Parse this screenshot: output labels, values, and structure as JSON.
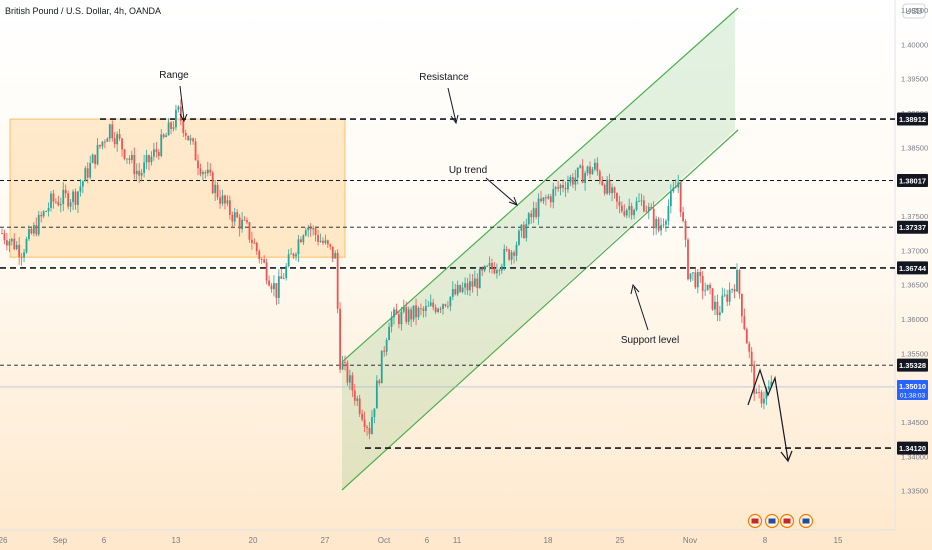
{
  "title": "British Pound / U.S. Dollar, 4h, OANDA",
  "currency": "USD",
  "colors": {
    "up": "#26a69a",
    "down": "#ef5350",
    "channel": "#4caf50",
    "range": "#ff9800",
    "text": "#131722",
    "axis": "#787b86"
  },
  "chart_data": {
    "type": "candlestick",
    "symbol": "GBPUSD",
    "timeframe": "4h",
    "ylim": [
      1.33,
      1.405
    ],
    "y_ticks": [
      "1.40500",
      "1.40000",
      "1.39500",
      "1.39000",
      "1.38500",
      "1.37500",
      "1.37000",
      "1.36500",
      "1.36000",
      "1.35500",
      "1.34500",
      "1.34000",
      "1.33500"
    ],
    "x_ticks": [
      "26",
      "Sep",
      "6",
      "13",
      "20",
      "27",
      "Oct",
      "6",
      "11",
      "18",
      "25",
      "Nov",
      "8",
      "15"
    ],
    "price_levels": [
      {
        "label": "1.38912",
        "value": 1.38912,
        "style": "thick"
      },
      {
        "label": "1.38017",
        "value": 1.38017,
        "style": "thin"
      },
      {
        "label": "1.37337",
        "value": 1.37337,
        "style": "thin"
      },
      {
        "label": "1.36744",
        "value": 1.36744,
        "style": "thick"
      },
      {
        "label": "1.35328",
        "value": 1.35328,
        "style": "thin"
      },
      {
        "label": "1.34120",
        "value": 1.3412,
        "style": "thick"
      }
    ],
    "last_price": {
      "label": "1.35010",
      "countdown": "01:38:03",
      "value": 1.3501
    },
    "annotations": [
      "Range",
      "Resistance",
      "Up trend",
      "Support level"
    ],
    "segments": [
      {
        "from": [
          0,
          1.3725
        ],
        "to": [
          8,
          1.37
        ]
      },
      {
        "from": [
          8,
          1.37
        ],
        "to": [
          20,
          1.377
        ]
      },
      {
        "from": [
          20,
          1.377
        ],
        "to": [
          30,
          1.378
        ]
      },
      {
        "from": [
          30,
          1.378
        ],
        "to": [
          44,
          1.388
        ]
      },
      {
        "from": [
          44,
          1.388
        ],
        "to": [
          56,
          1.381
        ]
      },
      {
        "from": [
          56,
          1.381
        ],
        "to": [
          66,
          1.386
        ]
      },
      {
        "from": [
          66,
          1.386
        ],
        "to": [
          72,
          1.39
        ]
      },
      {
        "from": [
          72,
          1.39
        ],
        "to": [
          80,
          1.383
        ]
      },
      {
        "from": [
          80,
          1.383
        ],
        "to": [
          92,
          1.376
        ]
      },
      {
        "from": [
          92,
          1.376
        ],
        "to": [
          100,
          1.373
        ]
      },
      {
        "from": [
          100,
          1.373
        ],
        "to": [
          112,
          1.364
        ]
      },
      {
        "from": [
          112,
          1.364
        ],
        "to": [
          124,
          1.374
        ]
      },
      {
        "from": [
          124,
          1.374
        ],
        "to": [
          136,
          1.369
        ]
      },
      {
        "from": [
          136,
          1.369
        ],
        "to": [
          138,
          1.354
        ]
      },
      {
        "from": [
          138,
          1.354
        ],
        "to": [
          150,
          1.344
        ]
      },
      {
        "from": [
          150,
          1.344
        ],
        "to": [
          158,
          1.36
        ]
      },
      {
        "from": [
          158,
          1.36
        ],
        "to": [
          172,
          1.361
        ]
      },
      {
        "from": [
          172,
          1.361
        ],
        "to": [
          192,
          1.365
        ]
      },
      {
        "from": [
          192,
          1.365
        ],
        "to": [
          208,
          1.37
        ]
      },
      {
        "from": [
          208,
          1.37
        ],
        "to": [
          218,
          1.376
        ]
      },
      {
        "from": [
          218,
          1.376
        ],
        "to": [
          230,
          1.38
        ]
      },
      {
        "from": [
          230,
          1.38
        ],
        "to": [
          242,
          1.382
        ]
      },
      {
        "from": [
          242,
          1.382
        ],
        "to": [
          252,
          1.376
        ]
      },
      {
        "from": [
          252,
          1.376
        ],
        "to": [
          262,
          1.377
        ]
      },
      {
        "from": [
          262,
          1.377
        ],
        "to": [
          268,
          1.373
        ]
      },
      {
        "from": [
          268,
          1.373
        ],
        "to": [
          276,
          1.38
        ]
      },
      {
        "from": [
          276,
          1.38
        ],
        "to": [
          280,
          1.367
        ]
      },
      {
        "from": [
          280,
          1.367
        ],
        "to": [
          288,
          1.364
        ]
      },
      {
        "from": [
          288,
          1.364
        ],
        "to": [
          292,
          1.361
        ]
      },
      {
        "from": [
          292,
          1.361
        ],
        "to": [
          300,
          1.366
        ]
      },
      {
        "from": [
          300,
          1.366
        ],
        "to": [
          308,
          1.348
        ]
      },
      {
        "from": [
          308,
          1.348
        ],
        "to": [
          314,
          1.3501
        ]
      }
    ],
    "ranges": {
      "candle_count": 315
    }
  }
}
